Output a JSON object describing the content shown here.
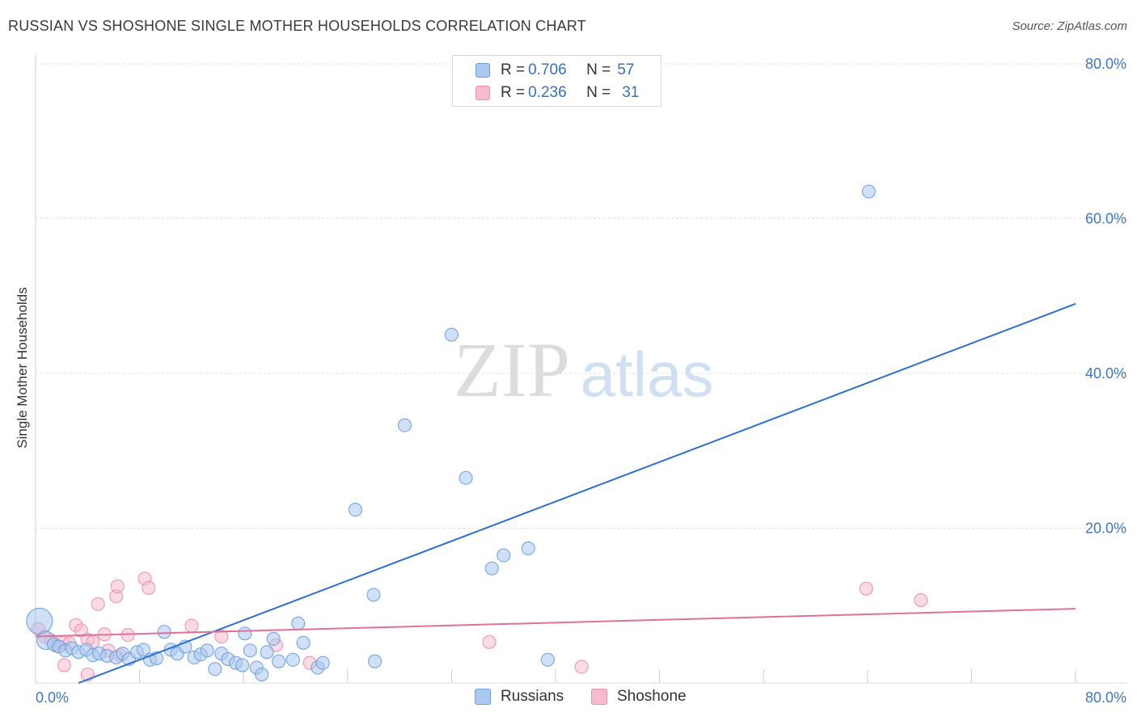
{
  "header": {
    "title": "RUSSIAN VS SHOSHONE SINGLE MOTHER HOUSEHOLDS CORRELATION CHART",
    "source": "Source: ZipAtlas.com"
  },
  "legend_top": {
    "rows": [
      {
        "r_label": "R = ",
        "r_value": "0.706",
        "n_label": "N = ",
        "n_value": "57"
      },
      {
        "r_label": "R = ",
        "r_value": "0.236",
        "n_label": "N = ",
        "n_value": "31"
      }
    ]
  },
  "legend_bottom": {
    "russians": "Russians",
    "shoshone": "Shoshone"
  },
  "watermark": {
    "zip": "ZIP",
    "atlas": "atlas"
  },
  "colors": {
    "russians_fill": "#aac8f0",
    "russians_stroke": "#6a9ee0",
    "russians_line": "#2b6fd0",
    "shoshone_fill": "#f6bccd",
    "shoshone_stroke": "#ec8faa",
    "shoshone_line": "#e07098",
    "tick_label": "#3d77c9",
    "grid": "#e0e0e0"
  },
  "chart_data": {
    "type": "scatter",
    "title": "RUSSIAN VS SHOSHONE SINGLE MOTHER HOUSEHOLDS CORRELATION CHART",
    "xlabel": "",
    "ylabel": "Single Mother Households",
    "xlim": [
      0,
      80
    ],
    "ylim": [
      0,
      80
    ],
    "x_tick_labels": [
      "0.0%",
      "80.0%"
    ],
    "y_tick_labels": [
      "20.0%",
      "40.0%",
      "60.0%",
      "80.0%"
    ],
    "y_ticks": [
      20,
      40,
      60,
      80
    ],
    "x_minor_ticks": [
      0,
      8,
      16,
      24,
      32,
      40,
      48,
      56,
      64,
      72,
      80
    ],
    "series": [
      {
        "name": "Russians",
        "r": 0.706,
        "n": 57,
        "trend": {
          "x0": 3.3,
          "y0": 0,
          "x1": 80,
          "y1": 49
        },
        "points": [
          [
            0.3,
            8.0,
            2.0
          ],
          [
            0.8,
            5.5,
            1.4
          ],
          [
            1.4,
            5.0,
            1
          ],
          [
            1.8,
            4.7,
            1
          ],
          [
            2.3,
            4.2,
            1
          ],
          [
            2.8,
            4.5,
            1
          ],
          [
            3.3,
            4.0,
            1
          ],
          [
            3.9,
            4.3,
            1
          ],
          [
            4.4,
            3.6,
            1
          ],
          [
            4.9,
            3.8,
            1
          ],
          [
            5.5,
            3.5,
            1
          ],
          [
            6.2,
            3.3,
            1
          ],
          [
            6.7,
            3.8,
            1
          ],
          [
            7.2,
            3.1,
            1
          ],
          [
            7.8,
            4.0,
            1
          ],
          [
            8.3,
            4.3,
            1
          ],
          [
            8.8,
            3.0,
            1
          ],
          [
            9.3,
            3.2,
            1
          ],
          [
            9.9,
            6.6,
            1
          ],
          [
            10.4,
            4.3,
            1
          ],
          [
            10.9,
            3.8,
            1
          ],
          [
            11.5,
            4.7,
            1
          ],
          [
            12.2,
            3.3,
            1
          ],
          [
            12.7,
            3.7,
            1
          ],
          [
            13.2,
            4.2,
            1
          ],
          [
            13.8,
            1.8,
            1
          ],
          [
            14.3,
            3.8,
            1
          ],
          [
            14.8,
            3.1,
            1
          ],
          [
            15.4,
            2.6,
            1
          ],
          [
            15.9,
            2.3,
            1
          ],
          [
            16.1,
            6.4,
            1
          ],
          [
            16.5,
            4.2,
            1
          ],
          [
            17.0,
            2.0,
            1
          ],
          [
            17.4,
            1.1,
            1
          ],
          [
            17.8,
            4.0,
            1
          ],
          [
            18.3,
            5.7,
            1
          ],
          [
            18.7,
            2.8,
            1
          ],
          [
            19.8,
            3.0,
            1
          ],
          [
            20.2,
            7.7,
            1
          ],
          [
            20.6,
            5.2,
            1
          ],
          [
            21.7,
            2.0,
            1
          ],
          [
            22.1,
            2.6,
            1
          ],
          [
            24.6,
            22.4,
            1
          ],
          [
            26.0,
            11.4,
            1
          ],
          [
            26.1,
            2.8,
            1
          ],
          [
            28.4,
            33.3,
            1
          ],
          [
            32.0,
            45.0,
            1
          ],
          [
            33.1,
            26.5,
            1
          ],
          [
            35.1,
            14.8,
            1
          ],
          [
            36.0,
            16.5,
            1
          ],
          [
            37.9,
            17.4,
            1
          ],
          [
            39.4,
            3.0,
            1
          ],
          [
            64.1,
            63.5,
            1
          ]
        ]
      },
      {
        "name": "Shoshone",
        "r": 0.236,
        "n": 31,
        "trend": {
          "x0": 0,
          "y0": 6.0,
          "x1": 80,
          "y1": 9.6
        },
        "points": [
          [
            0.2,
            7.0,
            1
          ],
          [
            0.7,
            6.0,
            1
          ],
          [
            1.2,
            5.5,
            1
          ],
          [
            1.6,
            4.8,
            1
          ],
          [
            2.1,
            5.2,
            1
          ],
          [
            2.2,
            2.3,
            1
          ],
          [
            2.6,
            5.1,
            1
          ],
          [
            3.1,
            7.5,
            1
          ],
          [
            3.5,
            6.8,
            1
          ],
          [
            4.0,
            5.6,
            1
          ],
          [
            4.0,
            1.1,
            1
          ],
          [
            4.4,
            5.3,
            1
          ],
          [
            4.8,
            10.2,
            1
          ],
          [
            5.3,
            6.3,
            1
          ],
          [
            5.6,
            4.2,
            1
          ],
          [
            6.2,
            11.2,
            1
          ],
          [
            6.3,
            12.5,
            1
          ],
          [
            6.5,
            3.6,
            1
          ],
          [
            7.1,
            6.2,
            1
          ],
          [
            8.4,
            13.5,
            1
          ],
          [
            8.7,
            12.3,
            1
          ],
          [
            12.0,
            7.4,
            1
          ],
          [
            14.3,
            6.0,
            1
          ],
          [
            18.5,
            4.9,
            1
          ],
          [
            21.1,
            2.6,
            1
          ],
          [
            34.9,
            5.3,
            1
          ],
          [
            42.0,
            2.1,
            1
          ],
          [
            63.9,
            12.2,
            1
          ],
          [
            68.1,
            10.7,
            1
          ]
        ]
      }
    ]
  }
}
